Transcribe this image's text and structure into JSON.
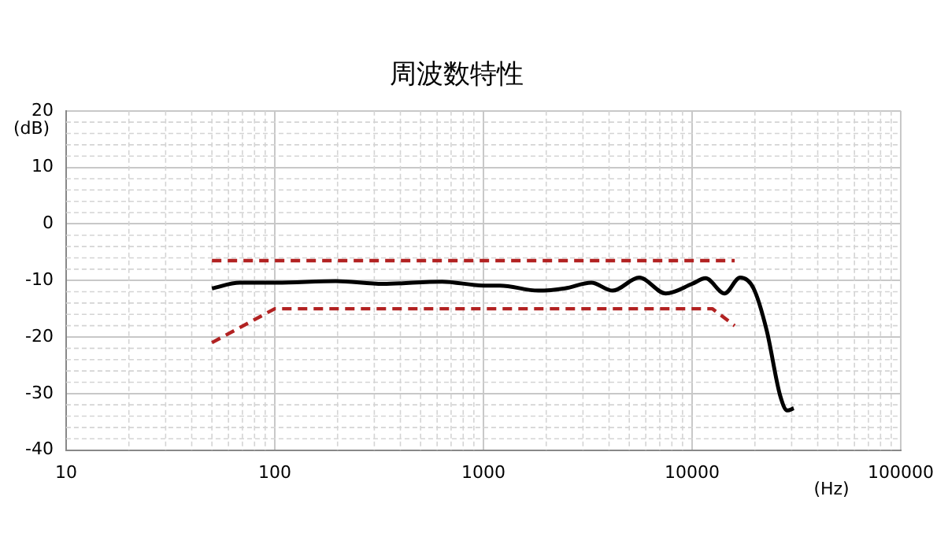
{
  "chart_data": {
    "type": "line",
    "title": "周波数特性",
    "xlabel": "(Hz)",
    "ylabel": "(dB)",
    "log": "x",
    "grid": true,
    "legend": false,
    "marker": "none",
    "xlim": [
      10,
      100000
    ],
    "xticks": [
      10,
      100,
      1000,
      10000,
      100000
    ],
    "ylim": [
      -40,
      20
    ],
    "yticks": [
      -40,
      -30,
      -20,
      -10,
      0,
      10,
      20
    ],
    "series": [
      {
        "color": "#000000",
        "line_style": "solid",
        "x": [
          50,
          68,
          102,
          196,
          330,
          634,
          1000,
          1200,
          1830,
          2460,
          3290,
          4160,
          5580,
          7480,
          10000,
          11600,
          14300,
          17000,
          19700,
          22800,
          26400,
          28600,
          30700
        ],
        "values": [
          -11.4,
          -10.4,
          -10.4,
          -10.1,
          -10.6,
          -10.2,
          -10.9,
          -10.9,
          -11.8,
          -11.4,
          -10.4,
          -11.8,
          -9.5,
          -12.3,
          -10.6,
          -9.6,
          -12.3,
          -9.5,
          -11.4,
          -18.9,
          -30.3,
          -33,
          -32.6
        ]
      },
      {
        "color": "#b22222",
        "line_style": "dashed",
        "x": [
          50,
          16000
        ],
        "values": [
          -6.5,
          -6.5
        ]
      },
      {
        "color": "#b22222",
        "line_style": "dashed",
        "x": [
          50,
          100,
          12500,
          16000
        ],
        "values": [
          -21,
          -15,
          -15,
          -18
        ]
      }
    ]
  }
}
